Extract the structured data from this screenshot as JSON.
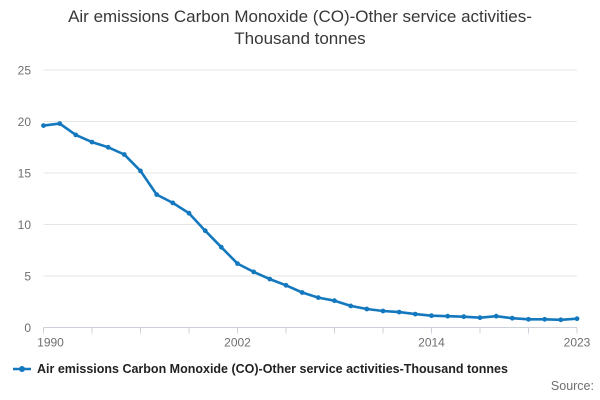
{
  "title": {
    "text": "Air emissions Carbon Monoxide (CO)-Other service activities-Thousand tonnes"
  },
  "legend": {
    "label": "Air emissions Carbon Monoxide (CO)-Other service activities-Thousand tonnes"
  },
  "footer": {
    "source": "Source:"
  },
  "colors": {
    "line": "#1478be",
    "grid": "#e6e6e6",
    "axis": "#ccd1da",
    "axis_text": "#6f6f6f",
    "title_text": "#383838",
    "legend_text": "#222222",
    "source_text": "#707070"
  },
  "chart_data": {
    "type": "line",
    "title": "Air emissions Carbon Monoxide (CO)-Other service activities-Thousand tonnes",
    "series_name": "Air emissions Carbon Monoxide (CO)-Other service activities-Thousand tonnes",
    "xlabel": "",
    "ylabel": "",
    "x": [
      1990,
      1991,
      1992,
      1993,
      1994,
      1995,
      1996,
      1997,
      1998,
      1999,
      2000,
      2001,
      2002,
      2003,
      2004,
      2005,
      2006,
      2007,
      2008,
      2009,
      2010,
      2011,
      2012,
      2013,
      2014,
      2015,
      2016,
      2017,
      2018,
      2019,
      2020,
      2021,
      2022,
      2023
    ],
    "values": [
      19.6,
      19.8,
      18.7,
      18.0,
      17.5,
      16.8,
      15.2,
      12.9,
      12.1,
      11.1,
      9.4,
      7.8,
      6.2,
      5.4,
      4.7,
      4.1,
      3.4,
      2.9,
      2.6,
      2.1,
      1.8,
      1.6,
      1.5,
      1.3,
      1.15,
      1.1,
      1.05,
      0.95,
      1.1,
      0.9,
      0.8,
      0.8,
      0.75,
      0.85
    ],
    "ylim": [
      0,
      25
    ],
    "yticks": [
      0,
      5,
      10,
      15,
      20,
      25
    ],
    "xticks": [
      1990,
      1993,
      1996,
      1999,
      2002,
      2005,
      2008,
      2011,
      2014,
      2017,
      2020,
      2023
    ],
    "xtick_labels": [
      1990,
      2002,
      2014,
      2023
    ],
    "grid": true,
    "markers": true,
    "legend_position": "bottom-left"
  }
}
